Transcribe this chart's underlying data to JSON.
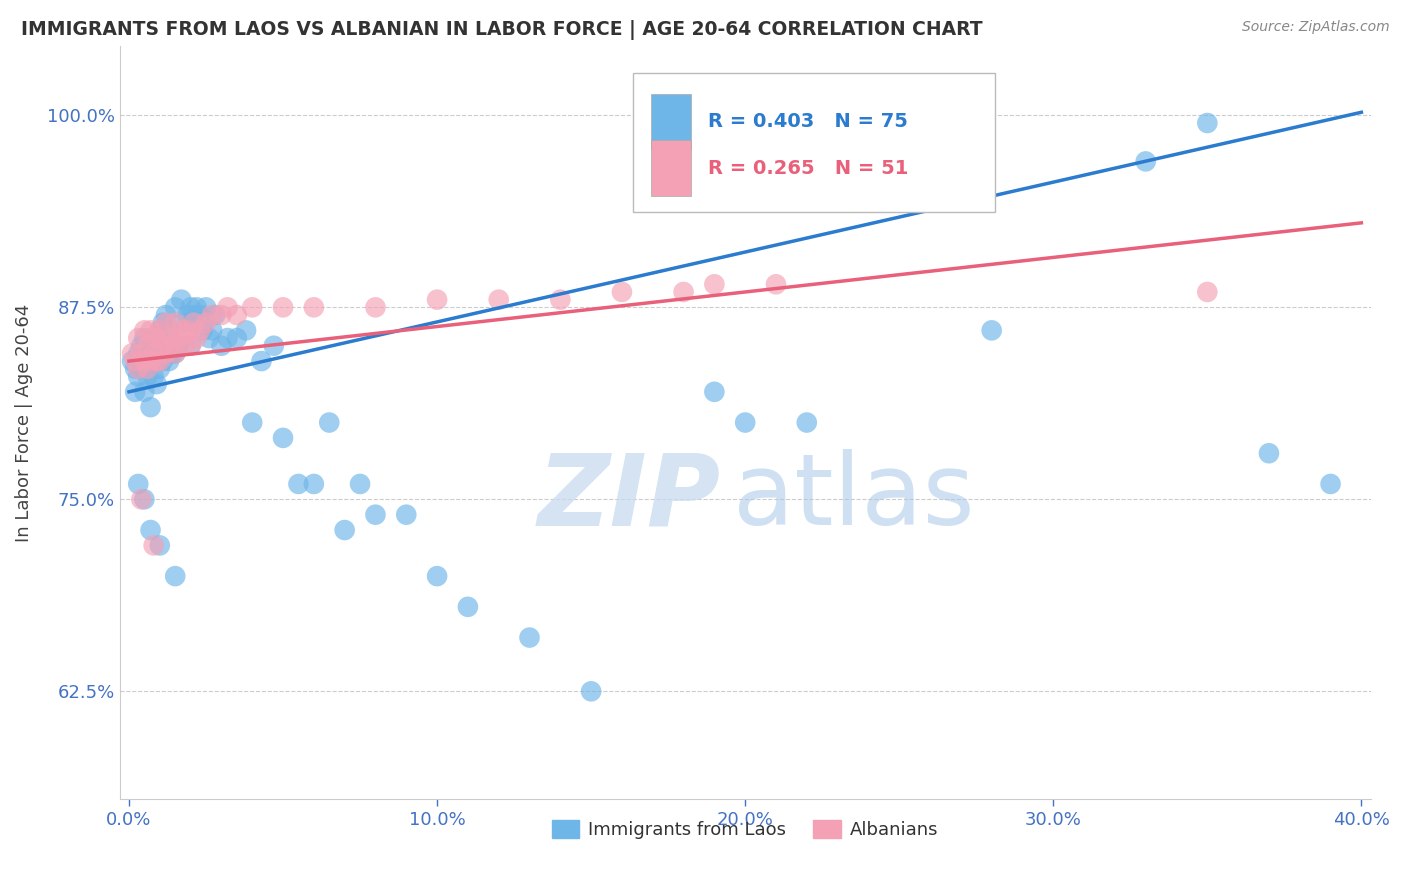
{
  "title": "IMMIGRANTS FROM LAOS VS ALBANIAN IN LABOR FORCE | AGE 20-64 CORRELATION CHART",
  "source": "Source: ZipAtlas.com",
  "xlabel_ticks": [
    "0.0%",
    "10.0%",
    "20.0%",
    "30.0%",
    "40.0%"
  ],
  "xlabel_tick_vals": [
    0.0,
    0.1,
    0.2,
    0.3,
    0.4
  ],
  "ylabel_ticks": [
    "62.5%",
    "75.0%",
    "87.5%",
    "100.0%"
  ],
  "ylabel_tick_vals": [
    0.625,
    0.75,
    0.875,
    1.0
  ],
  "xlim": [
    -0.003,
    0.403
  ],
  "ylim": [
    0.555,
    1.045
  ],
  "laos_r": 0.403,
  "laos_n": 75,
  "albanian_r": 0.265,
  "albanian_n": 51,
  "legend_label_laos": "Immigrants from Laos",
  "legend_label_albanian": "Albanians",
  "laos_color": "#6eb5e8",
  "albanian_color": "#f4a0b5",
  "laos_line_color": "#2b7bce",
  "albanian_line_color": "#e8607a",
  "laos_scatter_x": [
    0.001,
    0.002,
    0.002,
    0.003,
    0.003,
    0.004,
    0.004,
    0.005,
    0.005,
    0.005,
    0.006,
    0.006,
    0.007,
    0.007,
    0.008,
    0.008,
    0.009,
    0.009,
    0.01,
    0.01,
    0.011,
    0.011,
    0.012,
    0.012,
    0.013,
    0.013,
    0.014,
    0.015,
    0.015,
    0.016,
    0.017,
    0.018,
    0.019,
    0.02,
    0.02,
    0.021,
    0.022,
    0.023,
    0.024,
    0.025,
    0.026,
    0.027,
    0.028,
    0.03,
    0.032,
    0.035,
    0.038,
    0.04,
    0.043,
    0.047,
    0.05,
    0.055,
    0.06,
    0.065,
    0.07,
    0.075,
    0.08,
    0.09,
    0.1,
    0.11,
    0.13,
    0.15,
    0.19,
    0.2,
    0.22,
    0.28,
    0.33,
    0.35,
    0.37,
    0.39,
    0.003,
    0.005,
    0.007,
    0.01,
    0.015
  ],
  "laos_scatter_y": [
    0.84,
    0.835,
    0.82,
    0.83,
    0.845,
    0.835,
    0.85,
    0.82,
    0.84,
    0.855,
    0.83,
    0.845,
    0.81,
    0.84,
    0.83,
    0.855,
    0.825,
    0.85,
    0.835,
    0.86,
    0.84,
    0.865,
    0.845,
    0.87,
    0.84,
    0.86,
    0.845,
    0.845,
    0.875,
    0.85,
    0.88,
    0.865,
    0.87,
    0.85,
    0.875,
    0.87,
    0.875,
    0.87,
    0.86,
    0.875,
    0.855,
    0.86,
    0.87,
    0.85,
    0.855,
    0.855,
    0.86,
    0.8,
    0.84,
    0.85,
    0.79,
    0.76,
    0.76,
    0.8,
    0.73,
    0.76,
    0.74,
    0.74,
    0.7,
    0.68,
    0.66,
    0.625,
    0.82,
    0.8,
    0.8,
    0.86,
    0.97,
    0.995,
    0.78,
    0.76,
    0.76,
    0.75,
    0.73,
    0.72,
    0.7
  ],
  "albanian_scatter_x": [
    0.001,
    0.002,
    0.003,
    0.003,
    0.004,
    0.005,
    0.005,
    0.006,
    0.006,
    0.007,
    0.007,
    0.008,
    0.008,
    0.009,
    0.009,
    0.01,
    0.01,
    0.011,
    0.012,
    0.012,
    0.013,
    0.014,
    0.015,
    0.015,
    0.016,
    0.017,
    0.018,
    0.019,
    0.02,
    0.021,
    0.022,
    0.023,
    0.025,
    0.027,
    0.03,
    0.032,
    0.035,
    0.04,
    0.05,
    0.06,
    0.08,
    0.1,
    0.12,
    0.14,
    0.16,
    0.18,
    0.19,
    0.21,
    0.35,
    0.004,
    0.008
  ],
  "albanian_scatter_y": [
    0.845,
    0.84,
    0.835,
    0.855,
    0.845,
    0.84,
    0.86,
    0.835,
    0.85,
    0.84,
    0.86,
    0.845,
    0.855,
    0.84,
    0.855,
    0.84,
    0.86,
    0.85,
    0.845,
    0.865,
    0.855,
    0.85,
    0.845,
    0.865,
    0.855,
    0.86,
    0.85,
    0.86,
    0.85,
    0.865,
    0.855,
    0.86,
    0.865,
    0.87,
    0.87,
    0.875,
    0.87,
    0.875,
    0.875,
    0.875,
    0.875,
    0.88,
    0.88,
    0.88,
    0.885,
    0.885,
    0.89,
    0.89,
    0.885,
    0.75,
    0.72
  ],
  "watermark_zip": "ZIP",
  "watermark_atlas": "atlas",
  "axis_color": "#4472c4",
  "tick_color": "#4472c4",
  "laos_line_x": [
    0.0,
    0.4
  ],
  "laos_line_y": [
    0.82,
    1.002
  ],
  "albanian_line_x": [
    0.0,
    0.4
  ],
  "albanian_line_y": [
    0.84,
    0.93
  ]
}
